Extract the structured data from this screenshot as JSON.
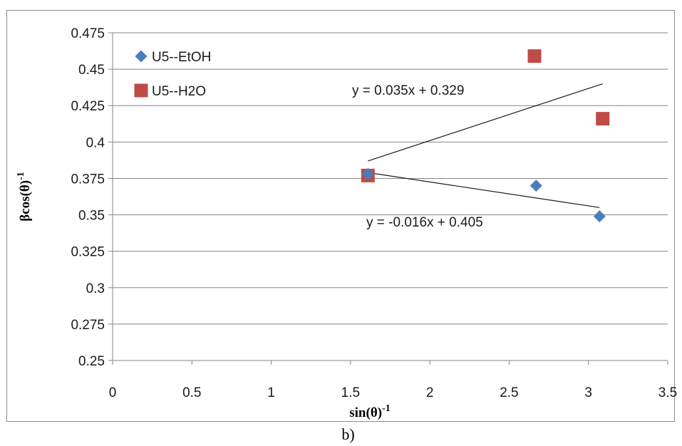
{
  "chart_data": {
    "type": "scatter",
    "xlabel": "sin(θ)",
    "xlabel_sup": "-1",
    "ylabel": "βcos(θ)",
    "ylabel_sup": "-1",
    "xlim": [
      0,
      3.5
    ],
    "ylim": [
      0.25,
      0.475
    ],
    "x_ticks": [
      "0",
      "0.5",
      "1",
      "1.5",
      "2",
      "2.5",
      "3",
      "3.5"
    ],
    "x_tick_values": [
      0,
      0.5,
      1,
      1.5,
      2,
      2.5,
      3,
      3.5
    ],
    "y_ticks": [
      "0.25",
      "0.275",
      "0.3",
      "0.325",
      "0.35",
      "0.375",
      "0.4",
      "0.425",
      "0.45",
      "0.475"
    ],
    "y_tick_values": [
      0.25,
      0.275,
      0.3,
      0.325,
      0.35,
      0.375,
      0.4,
      0.425,
      0.45,
      0.475
    ],
    "grid": "horizontal",
    "legend_position": "top-left",
    "series": [
      {
        "name": "U5--EtOH",
        "marker": "diamond",
        "color": "#4a7ebb",
        "points": [
          [
            1.61,
            0.378
          ],
          [
            2.67,
            0.37
          ],
          [
            3.07,
            0.349
          ]
        ]
      },
      {
        "name": "U5--H2O",
        "marker": "square",
        "color": "#be4b48",
        "points": [
          [
            1.61,
            0.377
          ],
          [
            2.66,
            0.459
          ],
          [
            3.09,
            0.416
          ]
        ]
      }
    ],
    "trendlines": [
      {
        "label": "y = 0.035x + 0.329",
        "x_range": [
          1.61,
          3.09
        ],
        "y_range": [
          0.387,
          0.44
        ]
      },
      {
        "label": "y = -0.016x + 0.405",
        "x_range": [
          1.61,
          3.07
        ],
        "y_range": [
          0.379,
          0.355
        ]
      }
    ],
    "caption": "b)"
  },
  "colors": {
    "etoh": "#4a7ebb",
    "h2o": "#be4b48",
    "grid": "#868686",
    "trend": "#1a1a1a"
  }
}
